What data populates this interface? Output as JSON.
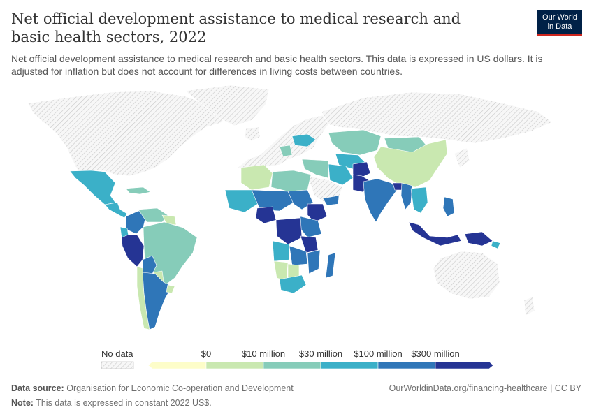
{
  "header": {
    "title": "Net official development assistance to medical research and basic health sectors, 2022",
    "subtitle": "Net official development assistance to medical research and basic health sectors. This data is expressed in US dollars. It is adjusted for inflation but does not account for differences in living costs between countries."
  },
  "logo": {
    "line1": "Our World",
    "line2": "in Data"
  },
  "legend": {
    "no_data_label": "No data",
    "bins": [
      {
        "label": "$0",
        "color": "#fdfdc9"
      },
      {
        "label": "$10 million",
        "color": "#c9e8b0"
      },
      {
        "label": "$30 million",
        "color": "#86ccb9"
      },
      {
        "label": "$100 million",
        "color": "#3bb0c8"
      },
      {
        "label": "$300 million",
        "color": "#2f76b8"
      },
      {
        "label": "",
        "color": "#253494"
      }
    ]
  },
  "footer": {
    "source_label": "Data source:",
    "source_text": "Organisation for Economic Co-operation and Development",
    "note_label": "Note:",
    "note_text": "This data is expressed in constant 2022 US$.",
    "site_link": "OurWorldinData.org/financing-healthcare | CC BY"
  },
  "colors": {
    "no_data": "#e8e8e8",
    "scale": [
      "#fdfdc9",
      "#c9e8b0",
      "#86ccb9",
      "#3bb0c8",
      "#2f76b8",
      "#253494"
    ]
  }
}
